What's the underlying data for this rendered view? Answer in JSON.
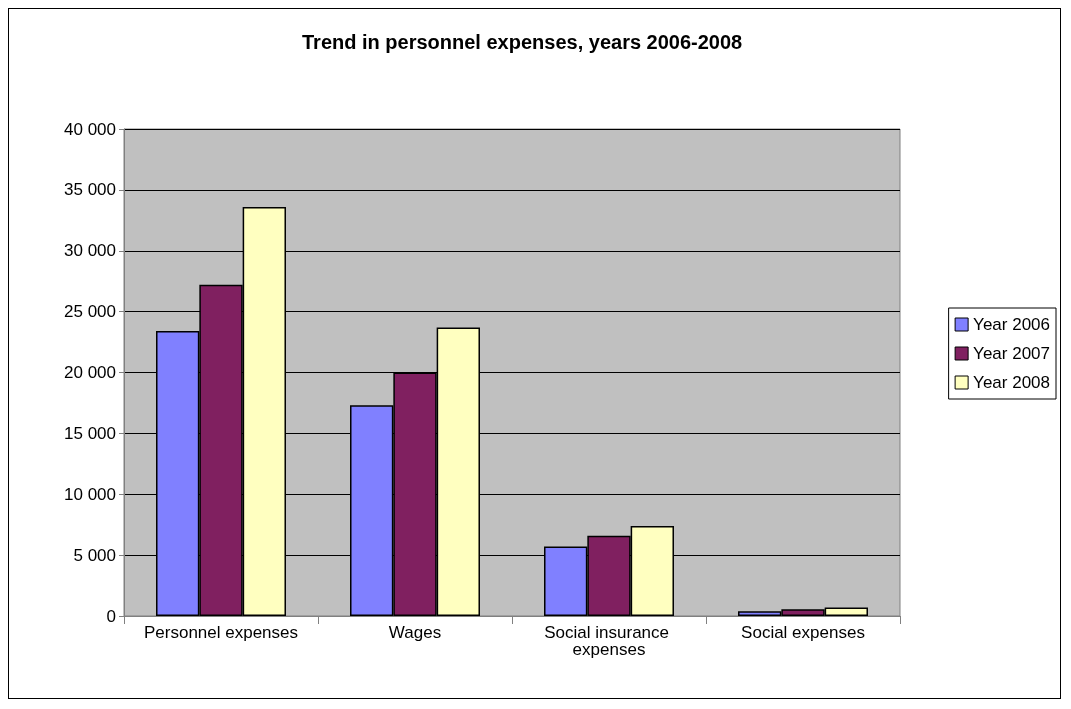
{
  "chart_data": {
    "type": "bar",
    "title": "Trend in personnel expenses, years 2006-2008",
    "categories": [
      "Personnel expenses",
      "Wages",
      "Social insurance expenses",
      "Social expenses"
    ],
    "series": [
      {
        "name": "Year 2006",
        "color": "#8080ff",
        "values": [
          23400,
          17300,
          5700,
          400
        ]
      },
      {
        "name": "Year 2007",
        "color": "#802060",
        "values": [
          27200,
          20000,
          6600,
          550
        ]
      },
      {
        "name": "Year 2008",
        "color": "#ffffc0",
        "values": [
          33600,
          23700,
          7400,
          700
        ]
      }
    ],
    "ylim": [
      0,
      40000
    ],
    "yticks": [
      {
        "value": 0,
        "label": "0"
      },
      {
        "value": 5000,
        "label": "5 000"
      },
      {
        "value": 10000,
        "label": "10 000"
      },
      {
        "value": 15000,
        "label": "15 000"
      },
      {
        "value": 20000,
        "label": "20 000"
      },
      {
        "value": 25000,
        "label": "25 000"
      },
      {
        "value": 30000,
        "label": "30 000"
      },
      {
        "value": 35000,
        "label": "35 000"
      },
      {
        "value": 40000,
        "label": "40 000"
      }
    ],
    "grid": "y",
    "legend": "right"
  }
}
